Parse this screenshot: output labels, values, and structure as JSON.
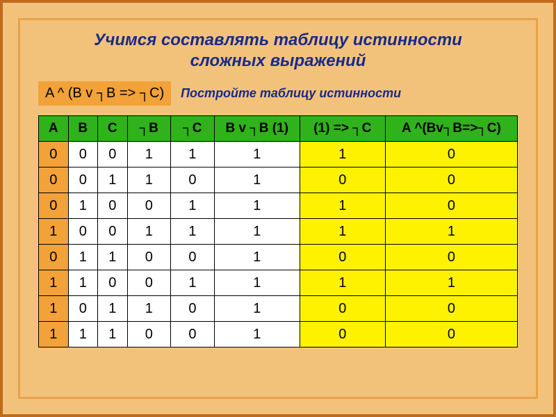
{
  "colors": {
    "page_bg": "#f3c27a",
    "outer_border": "#c06a1e",
    "inner_border": "#e8a24a",
    "title": "#1a2a8a",
    "expr_bg": "#f2a238",
    "instr": "#1a2a8a",
    "header_bg": "#2fb21a",
    "col_a_bg": "#f2a238",
    "col7_bg": "#fff200",
    "col8_bg": "#fff200",
    "cell_bg": "#ffffff"
  },
  "title_line1": "Учимся составлять таблицу истинности",
  "title_line2": "сложных выражений",
  "expression": "A ^ (B v ┐B => ┐C)",
  "instruction": "Постройте таблицу истинности",
  "headers": [
    "A",
    "B",
    "C",
    "┐B",
    "┐C",
    "B v ┐B (1)",
    "(1) => ┐C",
    "A ^(Bv┐B=>┐C)"
  ],
  "rows": [
    [
      "0",
      "0",
      "0",
      "1",
      "1",
      "1",
      "1",
      "0"
    ],
    [
      "0",
      "0",
      "1",
      "1",
      "0",
      "1",
      "0",
      "0"
    ],
    [
      "0",
      "1",
      "0",
      "0",
      "1",
      "1",
      "1",
      "0"
    ],
    [
      "1",
      "0",
      "0",
      "1",
      "1",
      "1",
      "1",
      "1"
    ],
    [
      "0",
      "1",
      "1",
      "0",
      "0",
      "1",
      "0",
      "0"
    ],
    [
      "1",
      "1",
      "0",
      "0",
      "1",
      "1",
      "1",
      "1"
    ],
    [
      "1",
      "0",
      "1",
      "1",
      "0",
      "1",
      "0",
      "0"
    ],
    [
      "1",
      "1",
      "1",
      "0",
      "0",
      "1",
      "0",
      "0"
    ]
  ]
}
